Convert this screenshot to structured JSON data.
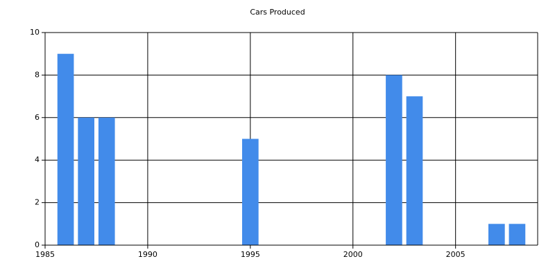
{
  "chart_data": {
    "type": "bar",
    "title": "Cars Produced",
    "x": [
      1986,
      1987,
      1988,
      1995,
      2002,
      2003,
      2007,
      2008
    ],
    "values": [
      9,
      6,
      6,
      5,
      8,
      7,
      1,
      1
    ],
    "color": "#428bea",
    "xlim": [
      1985,
      2009
    ],
    "xticks": [
      1985,
      1990,
      1995,
      2000,
      2005
    ],
    "ylim": [
      0,
      10
    ],
    "yticks": [
      0,
      2,
      4,
      6,
      8,
      10
    ],
    "grid": true
  }
}
